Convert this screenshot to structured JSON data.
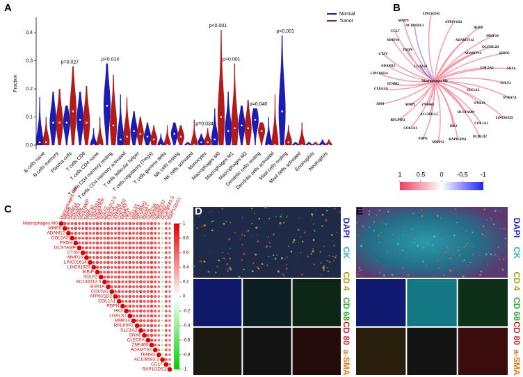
{
  "chart_data": [
    {
      "type": "violin",
      "panel": "A",
      "y_label": "Fraction",
      "categories": [
        "B cells naive",
        "B cells memory",
        "Plasma cells",
        "T cells CD8",
        "T cells CD4 naive",
        "T cells CD4 memory resting",
        "T cells CD4 memory activated",
        "T cells follicular helper",
        "T cells regulatory (Tregs)",
        "T cells gamma delta",
        "NK cells resting",
        "NK cells activated",
        "Monocytes",
        "Macrophages M0",
        "Macrophages M1",
        "Macrophages M2",
        "Dendritic cells resting",
        "Dendritic cells activated",
        "Mast cells resting",
        "Mast cells activated",
        "Eosinophils",
        "Neutrophils"
      ],
      "series": [
        {
          "name": "Normal",
          "color": "#1c1cb0",
          "values": [
            0.01,
            0.08,
            0.08,
            0.09,
            0.0,
            0.14,
            0.02,
            0.05,
            0.03,
            0.0,
            0.04,
            0.0,
            0.01,
            0.02,
            0.05,
            0.07,
            0.09,
            0.0,
            0.12,
            0.0,
            0.0,
            0.0
          ],
          "max": [
            0.17,
            0.19,
            0.14,
            0.19,
            0.06,
            0.29,
            0.18,
            0.12,
            0.08,
            0.04,
            0.08,
            0.01,
            0.04,
            0.13,
            0.19,
            0.14,
            0.13,
            0.1,
            0.39,
            0.01,
            0.01,
            0.02
          ]
        },
        {
          "name": "Tumor",
          "color": "#b01c1c",
          "values": [
            0.01,
            0.08,
            0.12,
            0.08,
            0.0,
            0.07,
            0.03,
            0.04,
            0.02,
            0.0,
            0.03,
            0.0,
            0.01,
            0.1,
            0.06,
            0.06,
            0.05,
            0.0,
            0.01,
            0.0,
            0.0,
            0.0
          ],
          "max": [
            0.1,
            0.2,
            0.28,
            0.21,
            0.1,
            0.25,
            0.17,
            0.1,
            0.07,
            0.07,
            0.07,
            0.09,
            0.06,
            0.41,
            0.29,
            0.16,
            0.08,
            0.18,
            0.07,
            0.08,
            0.01,
            0.02
          ]
        }
      ],
      "p_labels": [
        null,
        null,
        "p=0.027",
        null,
        null,
        "p=0.014",
        null,
        null,
        null,
        null,
        null,
        null,
        "p=0.034",
        "p<0.001",
        "p=0.001",
        null,
        "p=0.040",
        null,
        "p<0.001",
        null,
        null,
        null
      ],
      "ylim": [
        -0.015,
        0.455
      ],
      "yticks": [
        {
          "value": 0,
          "label": "0.0"
        },
        0.1,
        0.2,
        0.3,
        0.4
      ],
      "legend": "top-right"
    },
    {
      "type": "network",
      "panel": "B",
      "center": "Macrophages M0",
      "nodes": [
        "LINC02345",
        "ATP6V1D2",
        "IKBIP",
        "MMP14",
        "ADAMTS12",
        "OLFML2B",
        "SH2D5",
        "ADAMTS2",
        "SNX6",
        "COL5A3",
        "SULF2",
        "SLC1A2",
        "STRA7A",
        "EVA1A",
        "LINC01929",
        "DCSTAMP",
        "COL1A1",
        "DCBLD2",
        "RAP1GDS1",
        "HK3",
        "MMP12",
        "AC134312.5",
        "PDPN",
        "COL5A1",
        "RPLP0P2",
        "ZNF469",
        "MMP1",
        "SPP1",
        "CLEC5A",
        "TENM2",
        "LINC01614",
        "ADAM12",
        "CTSV",
        "PXDN",
        "MMP10",
        "CCL7",
        "LGALS1",
        "AC109583.3",
        "MMP9"
      ],
      "correlations": [
        0.5,
        0.5,
        0.5,
        0.5,
        0.6,
        0.5,
        0.5,
        0.6,
        0.5,
        0.5,
        0.5,
        0.6,
        0.5,
        0.5,
        0.5,
        0.6,
        0.5,
        0.5,
        0.5,
        0.6,
        0.5,
        0.6,
        0.5,
        0.5,
        0.5,
        0.6,
        0.5,
        0.5,
        0.5,
        0.6,
        0.5,
        0.5,
        0.5,
        0.6,
        0.5,
        0.5,
        -0.6,
        -0.4,
        0.5
      ],
      "clim": [
        -1,
        1
      ],
      "colorbar_ticks": [
        1,
        0.5,
        0,
        -0.5,
        -1
      ]
    },
    {
      "type": "correlation_matrix",
      "panel": "C",
      "labels": [
        "Macrophages M0",
        "MMP9",
        "ADAM12",
        "COL5A3",
        "PXDN",
        "DCSTAMP",
        "CTSV",
        "MMP10",
        "LINC01614",
        "LINC01929",
        "IKBIP",
        "SULF2",
        "AC134312.5",
        "EVA1A",
        "COL5A1",
        "ATP6V1D2",
        "COL1A1",
        "PDPN",
        "HK3",
        "LGALS1",
        "MMP14",
        "RPLP0P2",
        "SLC1A2",
        "SNX6",
        "CLEC5A",
        "ZNF469",
        "ADAMTS2",
        "TENM2",
        "AC109583.3",
        "CCL7",
        "RAP1GDS1"
      ],
      "matrix": [
        [
          1,
          0.6,
          0.5,
          0.5,
          0.6,
          0.5,
          0.5,
          0.6,
          0.5,
          0.5,
          0.6,
          0.5,
          0.5,
          0.6,
          0.5,
          0.5,
          0.6,
          0.5,
          0.5,
          0.6,
          0.5,
          0.5,
          0.6,
          0.5,
          0.5,
          0.6,
          0.5,
          0.4,
          -0.2,
          0.5,
          0.4
        ],
        [
          1,
          0.5,
          0.5,
          0.6,
          0.5,
          0.5,
          0.6,
          0.5,
          0.5,
          0.6,
          0.5,
          0.5,
          0.6,
          0.5,
          0.5,
          0.6,
          0.5,
          0.5,
          0.6,
          0.5,
          0.5,
          0.6,
          0.5,
          0.5,
          0.6,
          0.5,
          0.4,
          -0.2,
          0.5,
          0.4
        ],
        [
          1,
          0.5,
          0.6,
          0.5,
          0.5,
          0.6,
          0.5,
          0.5,
          0.6,
          0.5,
          0.5,
          0.6,
          0.5,
          0.5,
          0.6,
          0.5,
          0.5,
          0.6,
          0.5,
          0.5,
          0.6,
          0.5,
          0.5,
          0.6,
          0.5,
          0.4,
          -0.2,
          0.5,
          0.4
        ],
        [
          1,
          0.6,
          0.5,
          0.5,
          0.6,
          0.5,
          0.5,
          0.6,
          0.5,
          0.5,
          0.6,
          0.5,
          0.5,
          0.6,
          0.5,
          0.5,
          0.6,
          0.5,
          0.5,
          0.6,
          0.5,
          0.5,
          0.6,
          0.5,
          0.4,
          -0.2,
          0.5,
          0.4
        ],
        [
          1,
          0.5,
          0.5,
          0.6,
          0.5,
          0.5,
          0.6,
          0.5,
          0.5,
          0.6,
          0.5,
          0.5,
          0.6,
          0.5,
          0.5,
          0.6,
          0.5,
          0.5,
          0.6,
          0.5,
          0.5,
          0.6,
          0.5,
          0.4,
          -0.2,
          0.5,
          0.4
        ],
        [
          1,
          0.5,
          0.6,
          0.5,
          0.5,
          0.6,
          0.5,
          0.5,
          0.6,
          0.5,
          0.5,
          0.6,
          0.5,
          0.5,
          0.6,
          0.5,
          0.5,
          0.6,
          0.5,
          0.5,
          0.6,
          0.5,
          0.4,
          -0.2,
          0.5,
          0.4
        ],
        [
          1,
          0.6,
          0.5,
          0.5,
          0.6,
          0.5,
          0.5,
          0.6,
          0.5,
          0.5,
          0.6,
          0.5,
          0.5,
          0.6,
          0.5,
          0.5,
          0.6,
          0.5,
          0.5,
          0.6,
          0.5,
          0.4,
          -0.2,
          0.5,
          0.4
        ],
        [
          1,
          0.5,
          0.5,
          0.6,
          0.5,
          0.5,
          0.6,
          0.5,
          0.5,
          0.6,
          0.5,
          0.5,
          0.6,
          0.5,
          0.5,
          0.6,
          0.5,
          0.5,
          0.6,
          0.5,
          0.4,
          -0.2,
          0.5,
          0.4
        ],
        [
          1,
          0.5,
          0.6,
          0.5,
          0.5,
          0.6,
          0.5,
          0.5,
          0.6,
          0.5,
          0.5,
          0.6,
          0.5,
          0.5,
          0.6,
          0.5,
          0.5,
          0.6,
          0.5,
          0.4,
          -0.2,
          0.5,
          0.4
        ],
        [
          1,
          0.6,
          0.5,
          0.5,
          0.6,
          0.5,
          0.5,
          0.6,
          0.5,
          0.5,
          0.6,
          0.5,
          0.5,
          0.6,
          0.5,
          0.5,
          0.6,
          0.5,
          0.4,
          -0.2,
          0.5,
          0.4
        ],
        [
          1,
          0.5,
          0.5,
          0.6,
          0.5,
          0.5,
          0.6,
          0.5,
          0.5,
          0.6,
          0.5,
          0.5,
          0.6,
          0.5,
          0.5,
          0.6,
          0.5,
          0.4,
          -0.2,
          0.5,
          0.4
        ],
        [
          1,
          0.5,
          0.6,
          0.5,
          0.5,
          0.6,
          0.5,
          0.5,
          0.6,
          0.5,
          0.5,
          0.6,
          0.5,
          0.5,
          0.6,
          0.5,
          0.4,
          -0.2,
          0.5,
          0.4
        ],
        [
          1,
          0.6,
          0.5,
          0.5,
          0.6,
          0.5,
          0.5,
          0.6,
          0.5,
          0.5,
          0.6,
          0.5,
          0.5,
          0.6,
          0.5,
          0.4,
          -0.2,
          0.5,
          0.4
        ],
        [
          1,
          0.5,
          0.5,
          0.6,
          0.5,
          0.5,
          0.6,
          0.5,
          0.5,
          0.6,
          0.5,
          0.5,
          0.6,
          0.5,
          0.4,
          -0.2,
          0.5,
          0.4
        ],
        [
          1,
          0.5,
          0.6,
          0.5,
          0.5,
          0.6,
          0.5,
          0.5,
          0.6,
          0.5,
          0.5,
          0.6,
          0.5,
          0.4,
          -0.2,
          0.5,
          0.4
        ],
        [
          1,
          0.6,
          0.5,
          0.5,
          0.6,
          0.5,
          0.5,
          0.6,
          0.5,
          0.5,
          0.6,
          0.5,
          0.4,
          -0.2,
          0.5,
          0.4
        ],
        [
          1,
          0.5,
          0.5,
          0.6,
          0.5,
          0.5,
          0.6,
          0.5,
          0.5,
          0.6,
          0.5,
          0.4,
          -0.2,
          0.5,
          0.4
        ],
        [
          1,
          0.5,
          0.6,
          0.5,
          0.5,
          0.6,
          0.5,
          0.5,
          0.6,
          0.5,
          0.4,
          -0.2,
          0.5,
          0.4
        ],
        [
          1,
          0.6,
          0.5,
          0.5,
          0.6,
          0.5,
          0.5,
          0.6,
          0.5,
          0.4,
          -0.2,
          0.5,
          0.4
        ],
        [
          1,
          0.5,
          0.5,
          0.6,
          0.5,
          0.5,
          0.6,
          0.5,
          0.4,
          -0.2,
          0.5,
          0.4
        ],
        [
          1,
          0.5,
          0.6,
          0.5,
          0.5,
          0.6,
          0.5,
          0.4,
          -0.2,
          0.5,
          0.4
        ],
        [
          1,
          0.6,
          0.5,
          0.5,
          0.6,
          0.5,
          0.4,
          -0.2,
          0.5,
          0.4
        ],
        [
          1,
          0.5,
          0.5,
          0.6,
          0.5,
          0.4,
          -0.2,
          0.5,
          0.4
        ],
        [
          1,
          0.5,
          0.6,
          0.5,
          0.4,
          -0.2,
          0.5,
          0.4
        ],
        [
          1,
          0.6,
          0.5,
          0.4,
          -0.2,
          0.5,
          0.4
        ],
        [
          1,
          0.5,
          0.4,
          -0.2,
          0.5,
          0.4
        ],
        [
          1,
          0.4,
          -0.2,
          0.5,
          0.4
        ],
        [
          1,
          -0.2,
          0.5,
          0.4
        ],
        [
          1,
          0.5,
          0.4
        ],
        [
          1,
          0.4
        ],
        [
          1
        ]
      ],
      "clim": [
        -1,
        1
      ],
      "colorbar_ticks": [
        1,
        0.8,
        0.6,
        0.4,
        0.2,
        0,
        -0.2,
        -0.4,
        -0.6,
        -0.8,
        -1
      ]
    }
  ],
  "images": [
    {
      "panel": "D",
      "channels": [
        {
          "name": "DAPI",
          "color": "#2424d8"
        },
        {
          "name": "CK",
          "color": "#2ab8c0"
        },
        {
          "name": "CD 4",
          "color": "#a89a18"
        },
        {
          "name": "CD 68",
          "color": "#22b022"
        },
        {
          "name": "CD 80",
          "color": "#d82020"
        },
        {
          "name": "a-SMA",
          "color": "#e07a18"
        }
      ]
    },
    {
      "panel": "E",
      "channels": [
        {
          "name": "DAPI",
          "color": "#2424d8"
        },
        {
          "name": "CK",
          "color": "#2ab8c0"
        },
        {
          "name": "CD 4",
          "color": "#a89a18"
        },
        {
          "name": "CD 68",
          "color": "#22b022"
        },
        {
          "name": "CD 80",
          "color": "#d82020"
        },
        {
          "name": "a-SMA",
          "color": "#e07a18"
        }
      ]
    }
  ]
}
